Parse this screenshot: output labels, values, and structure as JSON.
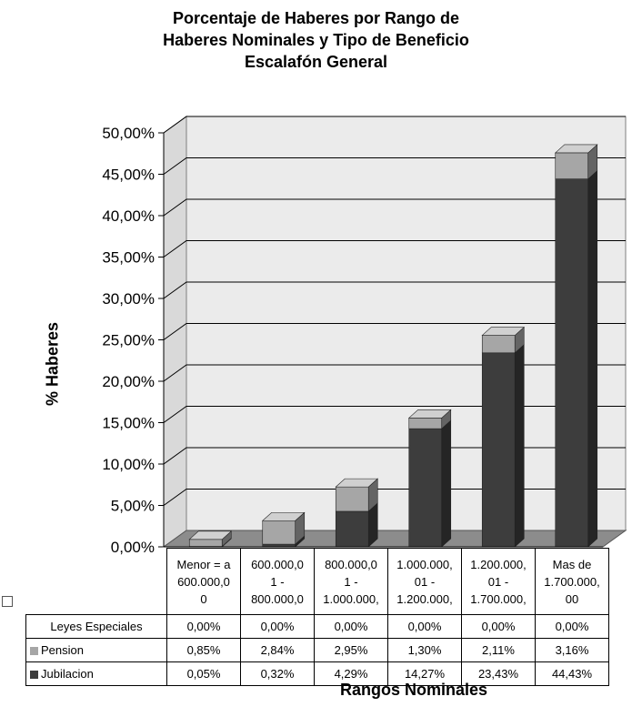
{
  "chart_data": {
    "type": "bar",
    "stacked": true,
    "three_d": true,
    "title_lines": [
      "Porcentaje de Haberes por Rango de",
      "Haberes Nominales y Tipo de Beneficio",
      "Escalafón General"
    ],
    "ylabel": "% Haberes",
    "xlabel": "Rangos Nominales",
    "ylim": [
      0,
      50
    ],
    "ytick_labels": [
      "0,00%",
      "5,00%",
      "10,00%",
      "15,00%",
      "20,00%",
      "25,00%",
      "30,00%",
      "35,00%",
      "40,00%",
      "45,00%",
      "50,00%"
    ],
    "grid": true,
    "category_lines": [
      [
        "Menor = a",
        "600.000,0",
        "0"
      ],
      [
        "600.000,0",
        "1 -",
        "800.000,0"
      ],
      [
        "800.000,0",
        "1 -",
        "1.000.000,"
      ],
      [
        "1.000.000,",
        "01 -",
        "1.200.000,"
      ],
      [
        "1.200.000,",
        "01 -",
        "1.700.000,"
      ],
      [
        "Mas de",
        "1.700.000,",
        "00"
      ]
    ],
    "series": [
      {
        "name": "Leyes Especiales",
        "values": [
          0,
          0,
          0,
          0,
          0,
          0
        ],
        "labels": [
          "0,00%",
          "0,00%",
          "0,00%",
          "0,00%",
          "0,00%",
          "0,00%"
        ],
        "color": "#ffffff"
      },
      {
        "name": "Pension",
        "values": [
          0.85,
          2.84,
          2.95,
          1.3,
          2.11,
          3.16
        ],
        "labels": [
          "0,85%",
          "2,84%",
          "2,95%",
          "1,30%",
          "2,11%",
          "3,16%"
        ],
        "color": "#a6a6a6"
      },
      {
        "name": "Jubilacion",
        "values": [
          0.05,
          0.32,
          4.29,
          14.27,
          23.43,
          44.43
        ],
        "labels": [
          "0,05%",
          "0,32%",
          "4,29%",
          "14,27%",
          "23,43%",
          "44,43%"
        ],
        "color": "#3d3d3d"
      }
    ],
    "wall_color": "#ebebeb",
    "floor_color": "#8c8c8c"
  }
}
